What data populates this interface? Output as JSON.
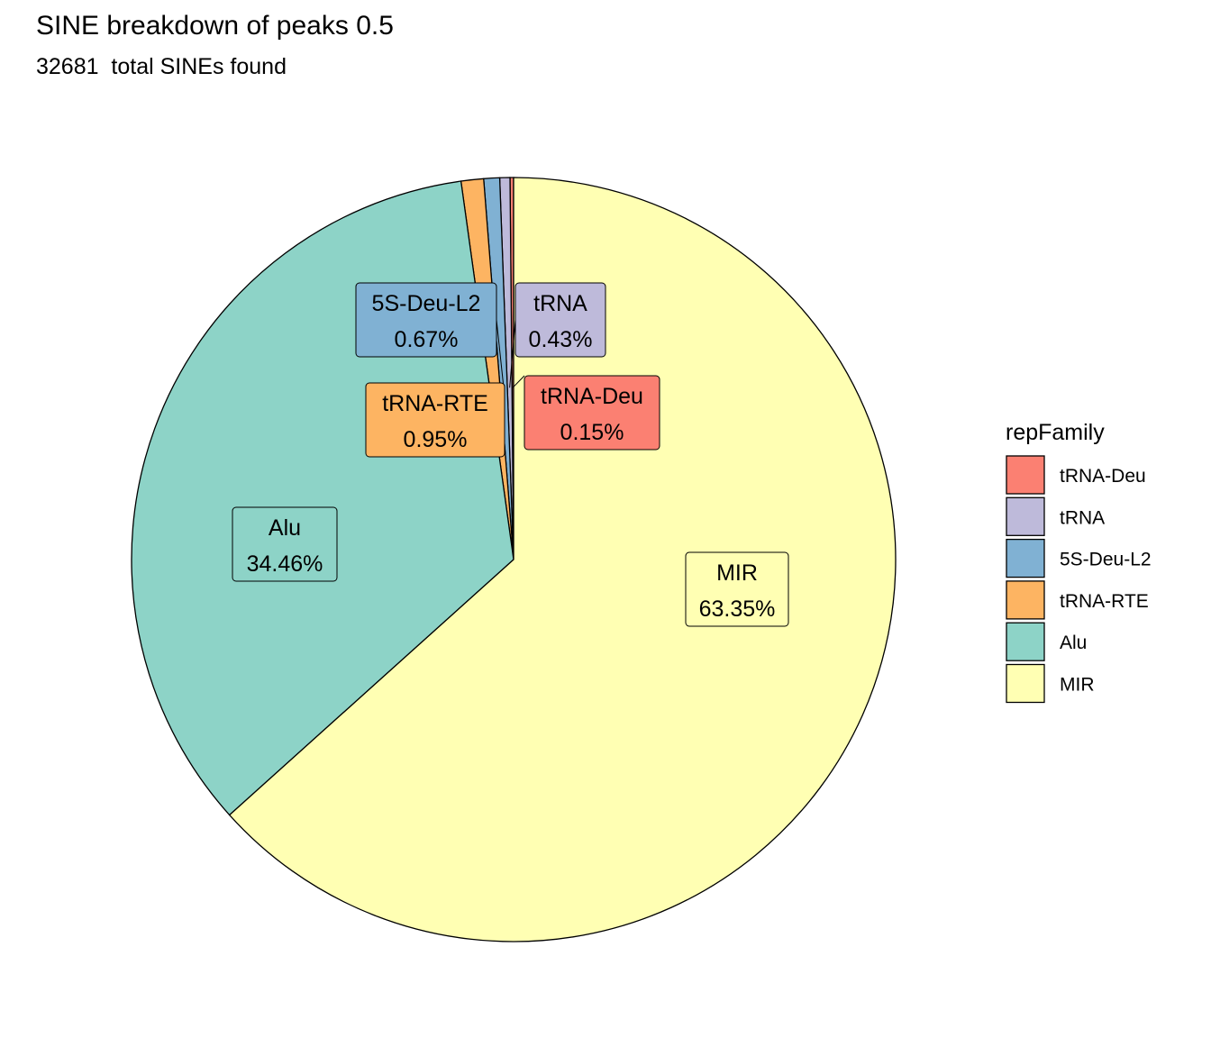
{
  "chart_data": {
    "type": "pie",
    "title": "SINE breakdown of peaks 0.5",
    "subtitle": "32681  total SINEs found",
    "legend_title": "repFamily",
    "legend_position": "right",
    "slices": [
      {
        "name": "tRNA-Deu",
        "percent_label": "0.15%",
        "value": 0.15,
        "color": "#FB8072"
      },
      {
        "name": "tRNA",
        "percent_label": "0.43%",
        "value": 0.43,
        "color": "#BEBADA"
      },
      {
        "name": "5S-Deu-L2",
        "percent_label": "0.67%",
        "value": 0.67,
        "color": "#80B1D3"
      },
      {
        "name": "tRNA-RTE",
        "percent_label": "0.95%",
        "value": 0.95,
        "color": "#FDB462"
      },
      {
        "name": "Alu",
        "percent_label": "34.46%",
        "value": 34.46,
        "color": "#8DD3C7"
      },
      {
        "name": "MIR",
        "percent_label": "63.35%",
        "value": 63.35,
        "color": "#FFFFB3"
      }
    ]
  }
}
